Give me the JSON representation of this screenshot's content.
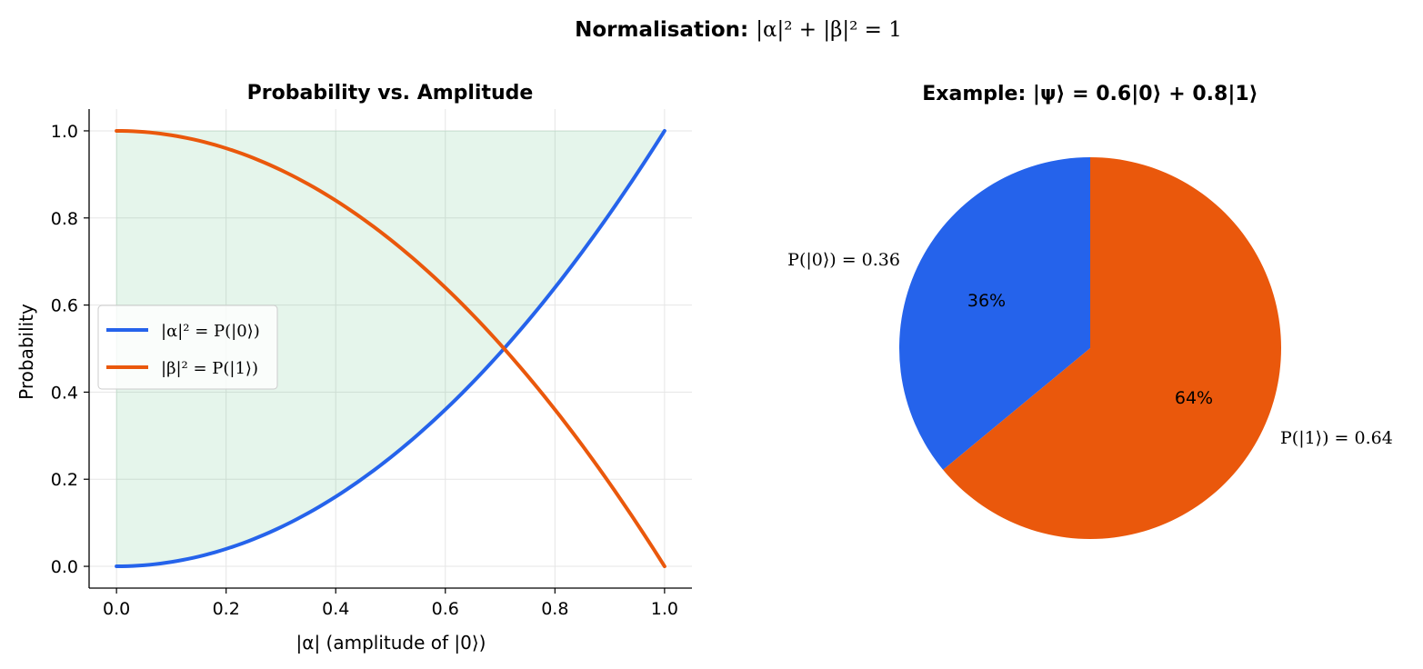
{
  "suptitle": {
    "bold": "Normalisation:",
    "math": "|α|² + |β|² = 1"
  },
  "chart_data": [
    {
      "type": "line",
      "title": "Probability vs. Amplitude",
      "xlabel": "|α| (amplitude of |0⟩)",
      "ylabel": "Probability",
      "xlim": [
        -0.05,
        1.05
      ],
      "ylim": [
        -0.05,
        1.05
      ],
      "xticks": [
        0.0,
        0.2,
        0.4,
        0.6,
        0.8,
        1.0
      ],
      "xtick_labels": [
        "0.0",
        "0.2",
        "0.4",
        "0.6",
        "0.8",
        "1.0"
      ],
      "yticks": [
        0.0,
        0.2,
        0.4,
        0.6,
        0.8,
        1.0
      ],
      "ytick_labels": [
        "0.0",
        "0.2",
        "0.4",
        "0.6",
        "0.8",
        "1.0"
      ],
      "grid": true,
      "legend": "center-left",
      "x": [
        0.0,
        0.1,
        0.2,
        0.3,
        0.4,
        0.5,
        0.6,
        0.7,
        0.8,
        0.9,
        1.0
      ],
      "series": [
        {
          "name": "|α|² = P(|0⟩)",
          "color": "#2563eb",
          "values": [
            0.0,
            0.01,
            0.04,
            0.09,
            0.16,
            0.25,
            0.36,
            0.49,
            0.64,
            0.81,
            1.0
          ]
        },
        {
          "name": "|β|² = P(|1⟩)",
          "color": "#ea580c",
          "values": [
            1.0,
            0.99,
            0.96,
            0.91,
            0.84,
            0.75,
            0.64,
            0.51,
            0.36,
            0.19,
            0.0
          ]
        }
      ],
      "fill": {
        "between": [
          0,
          1
        ],
        "color": "#16a34a",
        "opacity": 0.11
      }
    },
    {
      "type": "pie",
      "title": "Example: |ψ⟩ = 0.6|0⟩ + 0.8|1⟩",
      "slices": [
        {
          "label": "P(|0⟩) = 0.36",
          "value": 0.36,
          "pct": "36%",
          "color": "#2563eb"
        },
        {
          "label": "P(|1⟩) = 0.64",
          "value": 0.64,
          "pct": "64%",
          "color": "#ea580c"
        }
      ]
    }
  ]
}
